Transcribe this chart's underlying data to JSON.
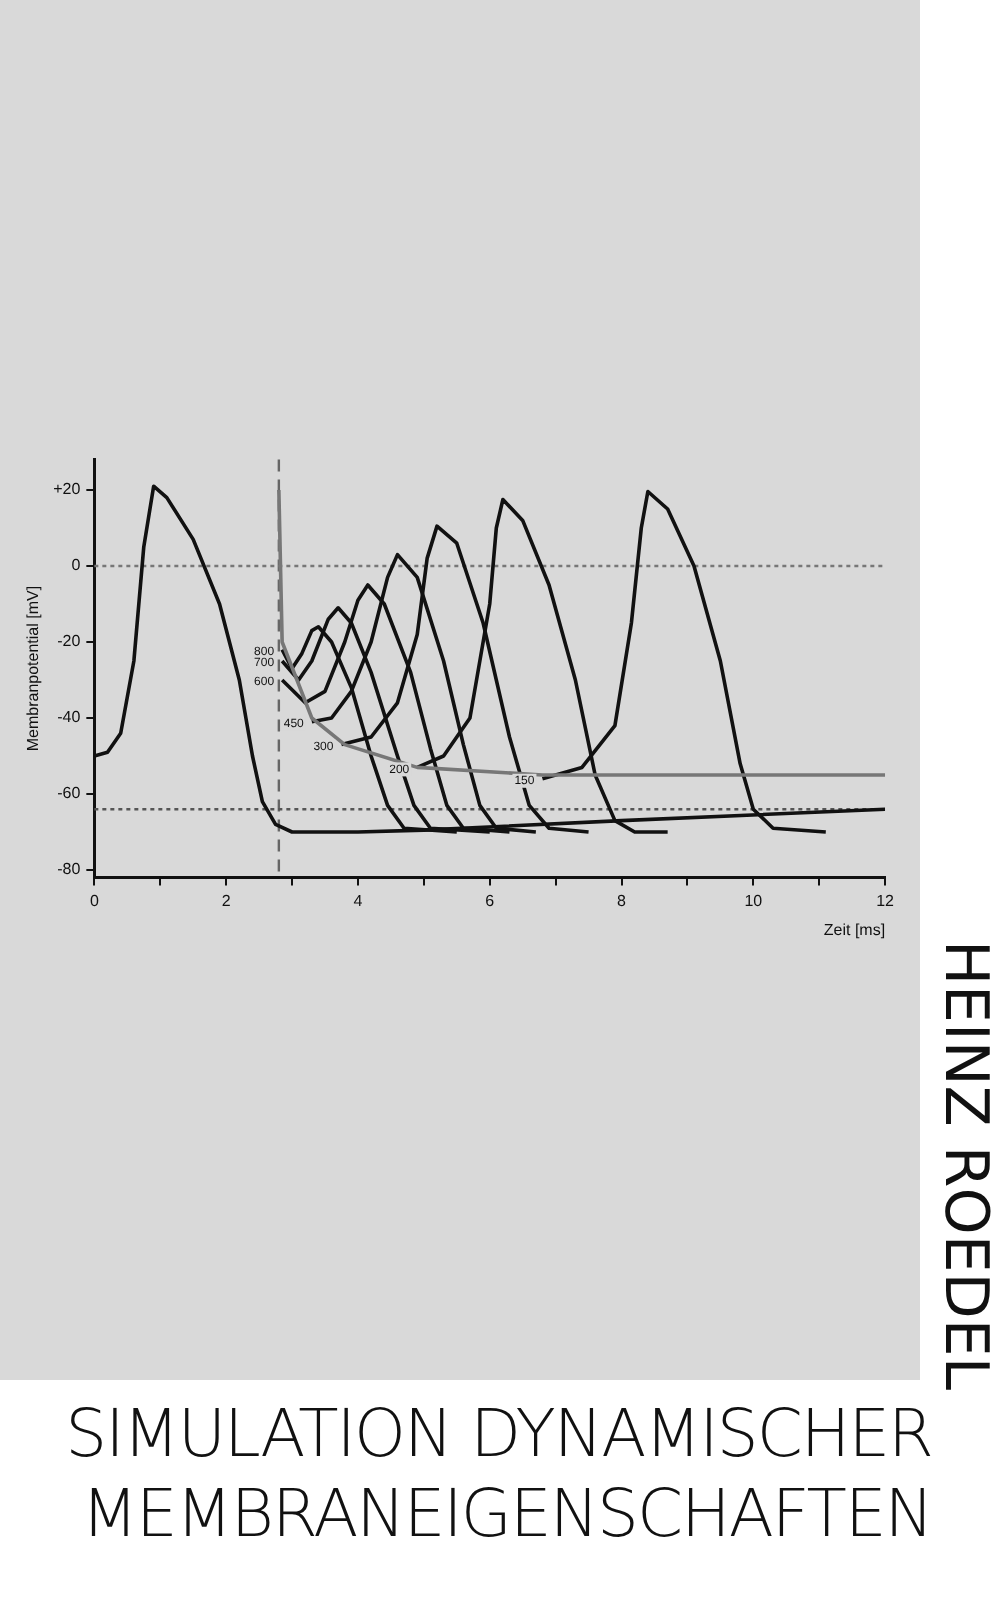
{
  "chart_data": {
    "type": "line",
    "title": "SIMULATION DYNAMISCHER\nMEMBRANEIGENSCHAFTEN",
    "subtitle": "HEINZ ROEDEL",
    "xlabel": "Zeit [ms]",
    "ylabel": "Membranpotential [mV]",
    "xlim": [
      0,
      12
    ],
    "ylim": [
      -82,
      28
    ],
    "xticks": [
      0,
      {
        "value": 1,
        "label": null
      },
      2,
      {
        "value": 3,
        "label": null
      },
      4,
      {
        "value": 5,
        "label": null
      },
      6,
      {
        "value": 7,
        "label": null
      },
      8,
      {
        "value": 9,
        "label": null
      },
      10,
      {
        "value": 11,
        "label": null
      },
      12
    ],
    "yticks": [
      -80,
      -60,
      -40,
      -20,
      0,
      {
        "value": 20,
        "label": "+20"
      }
    ],
    "grid": false,
    "legend": false,
    "marker": "none",
    "line_style": "solid",
    "series": [
      {
        "color": "#111111",
        "x": [
          0,
          0.2,
          0.4,
          0.6,
          0.75,
          0.9,
          1.1,
          1.5,
          1.9,
          2.2,
          2.4,
          2.55,
          2.75,
          3.0,
          4,
          5,
          8,
          12
        ],
        "values": [
          -50,
          -49,
          -44,
          -25,
          5,
          21,
          18,
          7,
          -10,
          -30,
          -50,
          -62,
          -68,
          -70,
          -70,
          -69.5,
          -67,
          -64
        ]
      },
      {
        "color": "#777777",
        "x": [
          2.8,
          2.85,
          3.3,
          3.8,
          4.9,
          6.8,
          12
        ],
        "values": [
          20,
          -20,
          -40,
          -47,
          -53,
          -55,
          -55
        ]
      },
      {
        "color": "#111111",
        "x": [
          2.85,
          3.0,
          3.15,
          3.3,
          3.4,
          3.6,
          3.9,
          4.2,
          4.45,
          4.7,
          5.5
        ],
        "values": [
          -22,
          -27,
          -23,
          -17,
          -16,
          -20,
          -32,
          -50,
          -63,
          -69,
          -70
        ]
      },
      {
        "color": "#111111",
        "x": [
          2.85,
          3.1,
          3.3,
          3.55,
          3.7,
          3.9,
          4.2,
          4.6,
          4.85,
          5.1,
          6
        ],
        "values": [
          -25,
          -30,
          -25,
          -14,
          -11,
          -15,
          -28,
          -50,
          -63,
          -69,
          -70
        ]
      },
      {
        "color": "#111111",
        "x": [
          2.85,
          3.2,
          3.5,
          3.8,
          4.0,
          4.15,
          4.4,
          4.8,
          5.1,
          5.35,
          5.6,
          6.3
        ],
        "values": [
          -30,
          -36,
          -33,
          -20,
          -9,
          -5,
          -10,
          -28,
          -48,
          -63,
          -69,
          -70
        ]
      },
      {
        "color": "#111111",
        "x": [
          3.3,
          3.6,
          3.9,
          4.2,
          4.45,
          4.6,
          4.9,
          5.3,
          5.6,
          5.85,
          6.1,
          6.7
        ],
        "values": [
          -41,
          -40,
          -33,
          -20,
          -3,
          3,
          -3,
          -25,
          -47,
          -63,
          -69,
          -70
        ]
      },
      {
        "color": "#111111",
        "x": [
          3.75,
          4.2,
          4.6,
          4.9,
          5.05,
          5.2,
          5.5,
          5.9,
          6.3,
          6.6,
          6.9,
          7.5
        ],
        "values": [
          -47,
          -45,
          -36,
          -18,
          2,
          10.5,
          6,
          -15,
          -45,
          -63,
          -69,
          -70
        ]
      },
      {
        "color": "#111111",
        "x": [
          4.9,
          5.3,
          5.7,
          6.0,
          6.1,
          6.2,
          6.5,
          6.9,
          7.3,
          7.6,
          7.9,
          8.2,
          8.7
        ],
        "values": [
          -53,
          -50,
          -40,
          -10,
          10,
          17.5,
          12,
          -5,
          -30,
          -55,
          -67,
          -70,
          -70
        ]
      },
      {
        "color": "#111111",
        "x": [
          6.8,
          7.4,
          7.9,
          8.15,
          8.3,
          8.4,
          8.7,
          9.1,
          9.5,
          9.8,
          10.0,
          10.3,
          11.1
        ],
        "values": [
          -56,
          -53,
          -42,
          -15,
          10,
          19.6,
          15,
          0,
          -25,
          -52,
          -64,
          -69,
          -70
        ]
      }
    ],
    "ref_lines": [
      {
        "axis": "x",
        "value": 2.8,
        "color": "#666666",
        "line_style": "dashed"
      },
      {
        "axis": "y",
        "value": 0,
        "color": "#777777",
        "line_style": "dotted"
      },
      {
        "axis": "y",
        "value": -64,
        "color": "#555555",
        "line_style": "dotted"
      }
    ],
    "annotations": [
      {
        "text": "800",
        "x": 2.85,
        "y": -22
      },
      {
        "text": "700",
        "x": 2.85,
        "y": -25
      },
      {
        "text": "600",
        "x": 2.85,
        "y": -30
      },
      {
        "text": "450",
        "x": 3.3,
        "y": -41
      },
      {
        "text": "300",
        "x": 3.75,
        "y": -47
      },
      {
        "text": "200",
        "x": 4.9,
        "y": -53
      },
      {
        "text": "150",
        "x": 6.8,
        "y": -56
      }
    ]
  }
}
